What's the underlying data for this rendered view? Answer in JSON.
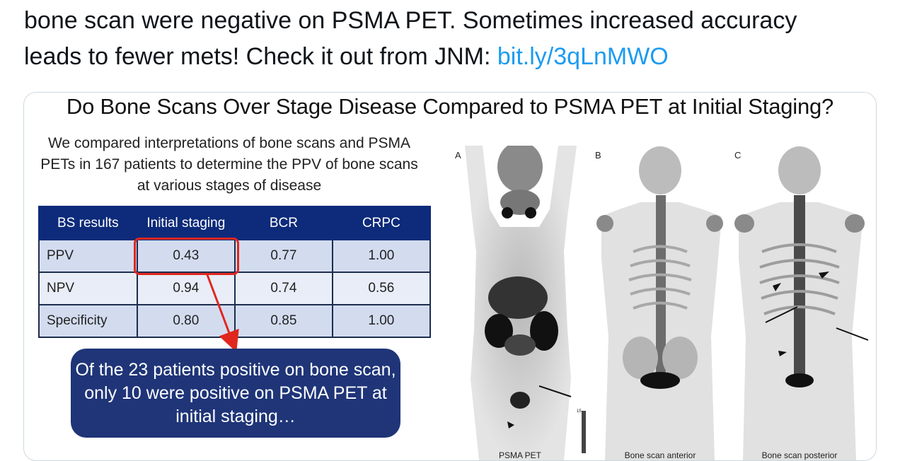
{
  "tweet": {
    "line1": "bone scan were negative on PSMA PET. Sometimes increased accuracy",
    "line2": "leads to fewer mets! Check it out from JNM: ",
    "link": "bit.ly/3qLnMWO"
  },
  "slide": {
    "title": "Do Bone Scans Over Stage Disease Compared to PSMA PET at Initial Staging?",
    "intro": "We compared interpretations of bone scans and PSMA PETs in 167 patients to determine the PPV of bone scans at various stages of disease",
    "table": {
      "headers": [
        "BS results",
        "Initial staging",
        "BCR",
        "CRPC"
      ],
      "rows": [
        [
          "PPV",
          "0.43",
          "0.77",
          "1.00"
        ],
        [
          "NPV",
          "0.94",
          "0.74",
          "0.56"
        ],
        [
          "Specificity",
          "0.80",
          "0.85",
          "1.00"
        ]
      ]
    },
    "callout": "Of the 23 patients positive on bone scan, only 10 were positive on PSMA PET at initial staging…",
    "panels": [
      {
        "letter": "A",
        "caption": "PSMA PET",
        "scale_max": "15"
      },
      {
        "letter": "B",
        "caption": "Bone scan anterior"
      },
      {
        "letter": "C",
        "caption": "Bone scan posterior"
      }
    ]
  },
  "colors": {
    "link": "#1d9bf0",
    "table_header": "#0d2b7a",
    "callout": "#1f3578",
    "highlight": "#e0271f"
  }
}
